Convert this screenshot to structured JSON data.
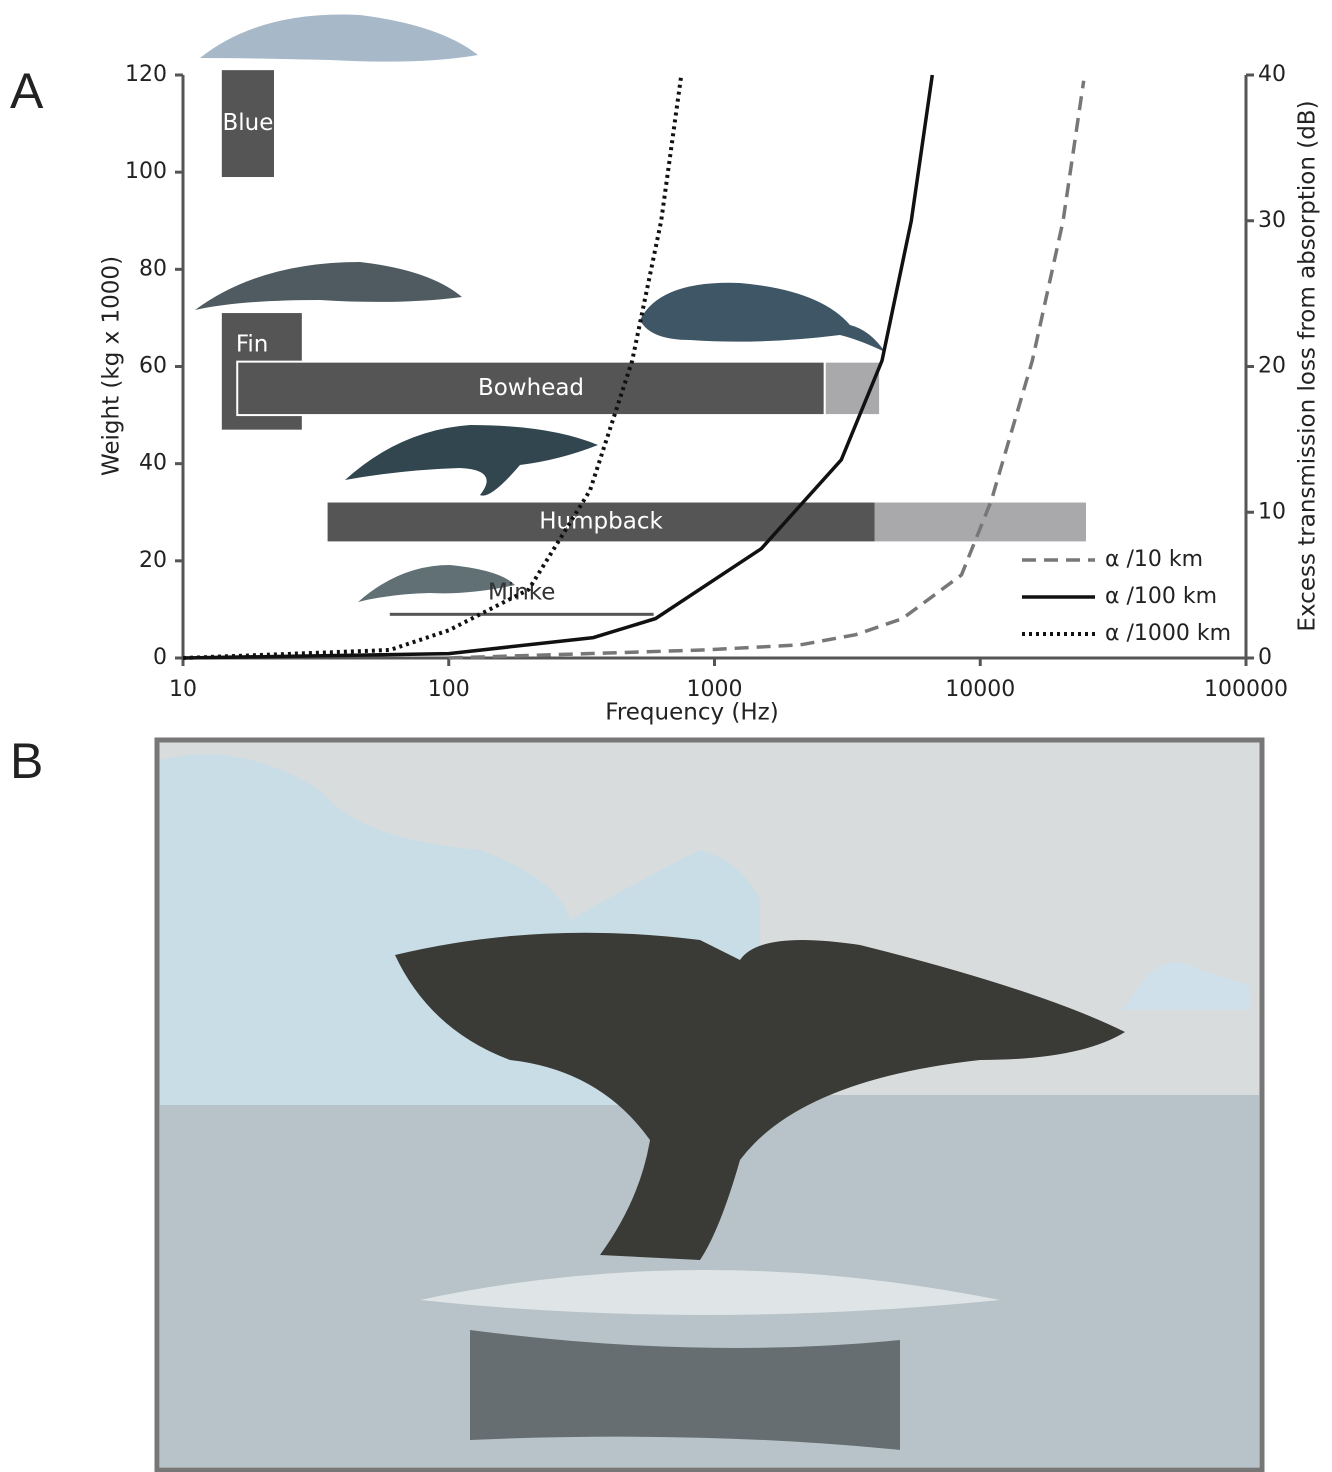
{
  "chart_data": {
    "type": "range-line",
    "panel_labels": [
      "A",
      "B"
    ],
    "xlabel": "Frequency (Hz)",
    "ylabel": "Weight (kg x 1000)",
    "y2label": "Excess transmission loss from absorption (dB)",
    "xscale": "log",
    "xlim": [
      10,
      100000
    ],
    "xticks": [
      10,
      100,
      1000,
      10000,
      100000
    ],
    "ylim": [
      0,
      120
    ],
    "yticks": [
      0,
      20,
      40,
      60,
      80,
      100,
      120
    ],
    "y2lim": [
      0,
      40
    ],
    "y2ticks": [
      0,
      10,
      20,
      30,
      40
    ],
    "ranges": [
      {
        "name": "Blue",
        "freq_lo": 14,
        "freq_hi": 22,
        "weight_lo": 99,
        "weight_hi": 121,
        "color": "#555555"
      },
      {
        "name": "Fin",
        "freq_lo": 14,
        "freq_hi": 28,
        "weight_lo": 47,
        "weight_hi": 71,
        "color": "#555555"
      },
      {
        "name": "Bowhead",
        "freq_lo": 16,
        "freq_hi": 2600,
        "freq_ext": 4200,
        "weight_lo": 50,
        "weight_hi": 61,
        "color": "#555555",
        "ext_color": "#a9a9ab"
      },
      {
        "name": "Humpback",
        "freq_lo": 35,
        "freq_hi": 4000,
        "freq_ext": 25000,
        "weight_lo": 24,
        "weight_hi": 32,
        "color": "#555555",
        "ext_color": "#a9a9ab"
      },
      {
        "name": "Minke",
        "freq_lo": 60,
        "freq_hi": 590,
        "weight_lo": 8.7,
        "weight_hi": 9.3,
        "color": "#555555"
      }
    ],
    "series": [
      {
        "name": "α /10 km",
        "color": "#777777",
        "dash": "dashed",
        "axis": "y2",
        "x": [
          100,
          900,
          2100,
          3400,
          5100,
          8500,
          11000,
          15700,
          20500,
          24500
        ],
        "values": [
          0,
          0.55,
          0.9,
          1.6,
          2.7,
          5.7,
          10.8,
          20.4,
          30,
          39.6
        ]
      },
      {
        "name": "α /100 km",
        "color": "#111111",
        "dash": "solid",
        "axis": "y2",
        "x": [
          10,
          100,
          350,
          600,
          1500,
          3000,
          4270,
          5500,
          6600
        ],
        "values": [
          0,
          0.3,
          1.4,
          2.7,
          7.5,
          13.6,
          20.4,
          30,
          40
        ]
      },
      {
        "name": "α /1000 km",
        "color": "#111111",
        "dash": "dotted",
        "axis": "y2",
        "x": [
          10,
          60,
          100,
          200,
          340,
          490,
          630,
          750
        ],
        "values": [
          0,
          0.55,
          1.9,
          4.7,
          11.5,
          20.4,
          30,
          40
        ]
      }
    ]
  }
}
